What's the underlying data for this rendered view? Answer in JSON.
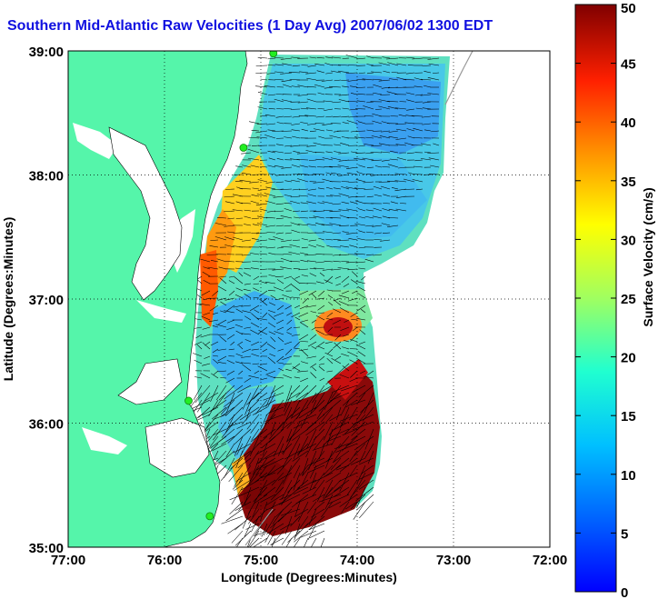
{
  "title": "Southern Mid-Atlantic Raw Velocities (1 Day Avg) 2007/06/02 1300 EDT",
  "map": {
    "xlabel": "Longitude (Degrees:Minutes)",
    "ylabel": "Latitude (Degrees:Minutes)",
    "x_ticks": [
      "77:00",
      "76:00",
      "75:00",
      "74:00",
      "73:00",
      "72:00"
    ],
    "y_ticks": [
      "39:00",
      "38:00",
      "37:00",
      "36:00",
      "35:00"
    ],
    "xlim": [
      -77,
      -72
    ],
    "ylim": [
      35,
      39
    ],
    "grid": true,
    "land_color": "#55f5aa",
    "water_color": "#ffffff",
    "vector_color": "#000000",
    "station_color": "#22ee22",
    "stations": [
      {
        "lon": -74.87,
        "lat": 38.98
      },
      {
        "lon": -75.18,
        "lat": 38.22
      },
      {
        "lon": -75.75,
        "lat": 36.18
      },
      {
        "lon": -75.53,
        "lat": 35.25
      }
    ]
  },
  "colorbar": {
    "label": "Surface Velocity (cm/s)",
    "ticks": [
      "0",
      "5",
      "10",
      "15",
      "20",
      "25",
      "30",
      "35",
      "40",
      "45",
      "50"
    ],
    "range": [
      0,
      50
    ],
    "colormap": "jet"
  }
}
